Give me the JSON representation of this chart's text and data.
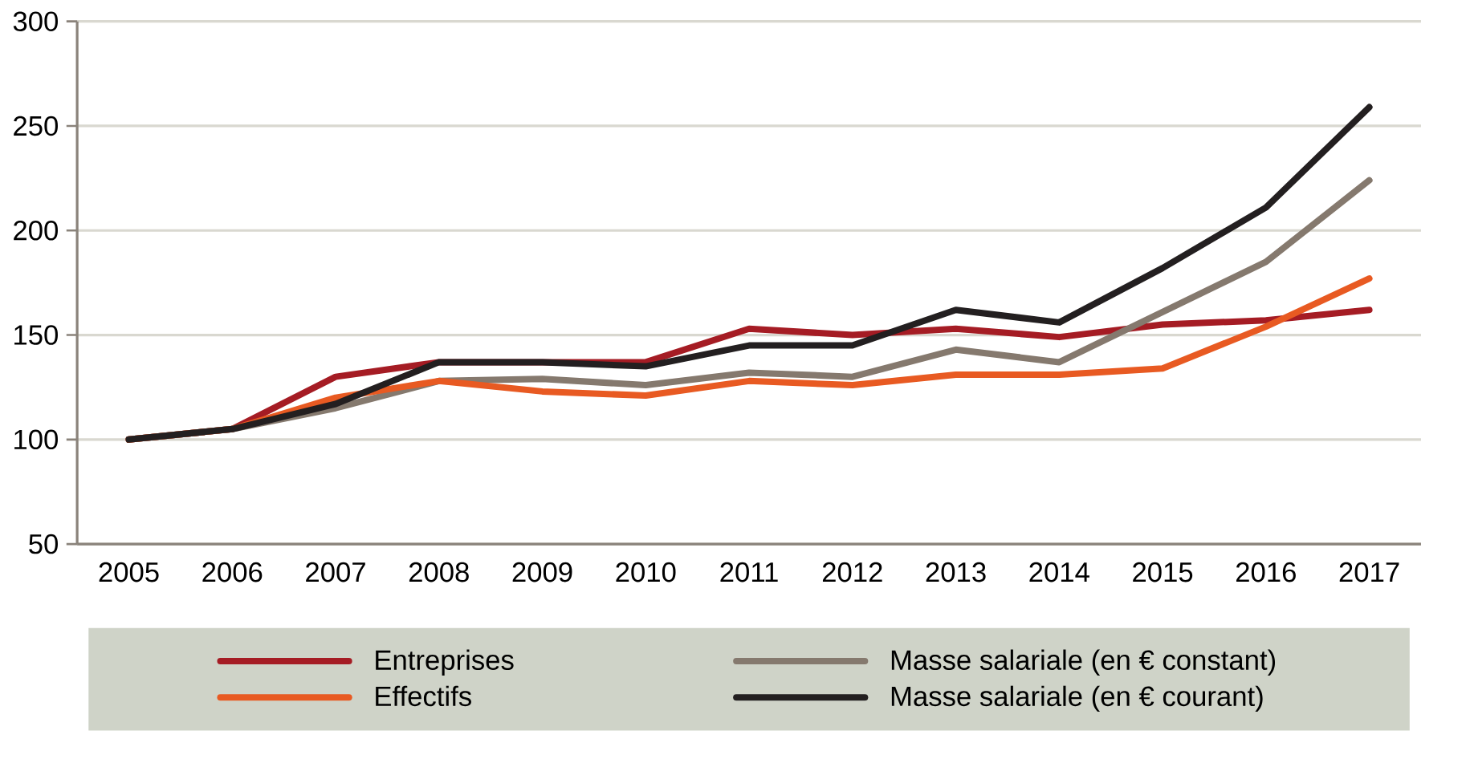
{
  "chart_data": {
    "type": "line",
    "categories": [
      "2005",
      "2006",
      "2007",
      "2008",
      "2009",
      "2010",
      "2011",
      "2012",
      "2013",
      "2014",
      "2015",
      "2016",
      "2017"
    ],
    "series": [
      {
        "name": "Entreprises",
        "color": "#a51c24",
        "values": [
          100,
          105,
          130,
          137,
          137,
          137,
          153,
          150,
          153,
          149,
          155,
          157,
          162
        ]
      },
      {
        "name": "Masse salariale (en € constant)",
        "color": "#85796e",
        "values": [
          100,
          105,
          115,
          128,
          129,
          126,
          132,
          130,
          143,
          137,
          161,
          185,
          224
        ]
      },
      {
        "name": "Effectifs",
        "color": "#e85a22",
        "values": [
          100,
          105,
          120,
          128,
          123,
          121,
          128,
          126,
          131,
          131,
          134,
          154,
          177
        ]
      },
      {
        "name": "Masse salariale (en € courant)",
        "color": "#231f20",
        "values": [
          100,
          105,
          117,
          137,
          137,
          135,
          145,
          145,
          162,
          156,
          182,
          211,
          259
        ]
      }
    ],
    "ylim": [
      50,
      300
    ],
    "yticks": [
      50,
      100,
      150,
      200,
      250,
      300
    ],
    "grid": "y",
    "legend": "bottom",
    "marker": "none",
    "line_style": "solid"
  }
}
